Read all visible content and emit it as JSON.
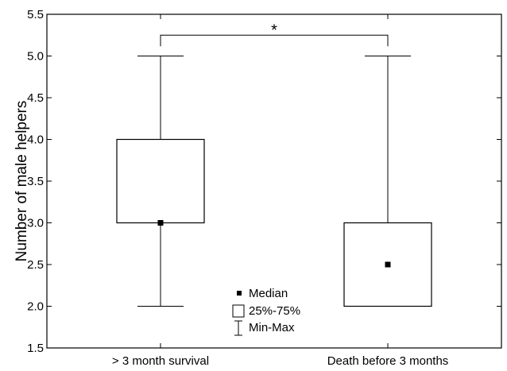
{
  "chart_data": {
    "type": "box",
    "categories": [
      "> 3 month survival",
      "Death before 3 months"
    ],
    "ylabel": "Number of male helpers",
    "xlabel": "",
    "ylim": [
      1.5,
      5.5
    ],
    "yticks": [
      "1.5",
      "2.0",
      "2.5",
      "3.0",
      "3.5",
      "4.0",
      "4.5",
      "5.0",
      "5.5"
    ],
    "boxes": [
      {
        "category": "> 3 month survival",
        "min": 2.0,
        "q1": 3.0,
        "median": 3.0,
        "q3": 4.0,
        "max": 5.0
      },
      {
        "category": "Death before 3 months",
        "min": 2.0,
        "q1": 2.0,
        "median": 2.5,
        "q3": 3.0,
        "max": 5.0
      }
    ],
    "significance": {
      "label": "*",
      "between": [
        0,
        1
      ],
      "y": 5.25
    },
    "legend": {
      "placement": "bottom-center",
      "items": [
        {
          "symbol": "median-marker",
          "label": "Median"
        },
        {
          "symbol": "box",
          "label": "25%-75%"
        },
        {
          "symbol": "whisker",
          "label": "Min-Max"
        }
      ]
    },
    "grid": false
  }
}
